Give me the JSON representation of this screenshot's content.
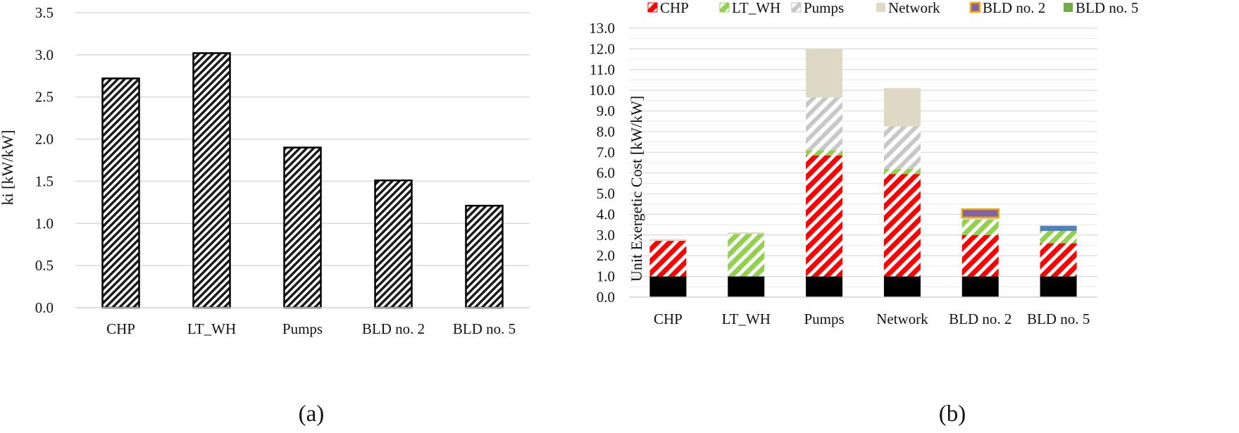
{
  "chart_data": [
    {
      "type": "bar",
      "panel_label": "(a)",
      "ylabel": "ki [kW/kW]",
      "xlabel": "",
      "categories": [
        "CHP",
        "LT_WH",
        "Pumps",
        "BLD no. 2",
        "BLD no. 5"
      ],
      "values": [
        2.72,
        3.02,
        1.9,
        1.51,
        1.21
      ],
      "ylim": [
        0,
        3.5
      ],
      "yticks": [
        "0.0",
        "0.5",
        "1.0",
        "1.5",
        "2.0",
        "2.5",
        "3.0",
        "3.5"
      ],
      "grid": true,
      "legend": "none",
      "fill": "diagonal-hatch"
    },
    {
      "type": "stacked-bar",
      "panel_label": "(b)",
      "ylabel": "Unit Exergetic Cost [kW/kW]",
      "xlabel": "",
      "categories": [
        "CHP",
        "LT_WH",
        "Pumps",
        "Network",
        "BLD no. 2",
        "BLD no. 5"
      ],
      "ylim": [
        0,
        13
      ],
      "yticks": [
        "0.0",
        "1.0",
        "2.0",
        "3.0",
        "4.0",
        "5.0",
        "6.0",
        "7.0",
        "8.0",
        "9.0",
        "10.0",
        "11.0",
        "12.0",
        "13.0"
      ],
      "grid": true,
      "legend": "top",
      "series": [
        {
          "label": "",
          "values": [
            1.0,
            1.0,
            1.0,
            1.0,
            1.0,
            1.0
          ],
          "color": "#000000",
          "pattern": "solid",
          "in_legend": false
        },
        {
          "name": "CHP",
          "values": [
            1.72,
            0,
            5.85,
            4.95,
            2.0,
            1.6
          ],
          "color": "#ff0000",
          "pattern": "hatch",
          "in_legend": true
        },
        {
          "name": "LT_WH",
          "values": [
            0,
            2.05,
            0.25,
            0.25,
            0.75,
            0.6
          ],
          "color": "#92d050",
          "pattern": "hatch",
          "in_legend": true
        },
        {
          "name": "Pumps",
          "values": [
            0,
            0,
            2.55,
            2.05,
            0,
            0
          ],
          "color": "#bfbfbf",
          "pattern": "hatch",
          "in_legend": true
        },
        {
          "name": "Network",
          "values": [
            0.08,
            0.08,
            2.35,
            1.85,
            0.1,
            0
          ],
          "color": "#ddd9c4",
          "pattern": "solid",
          "in_legend": true
        },
        {
          "name": "BLD no. 2",
          "values": [
            0,
            0,
            0,
            0,
            0.4,
            0
          ],
          "color": "#8064a2",
          "stroke": "#f5a800",
          "pattern": "solid",
          "in_legend": true
        },
        {
          "name": "BLD no. 5",
          "values": [
            0,
            0,
            0,
            0,
            0,
            0
          ],
          "color": "#70ad47",
          "pattern": "solid",
          "in_legend": true
        },
        {
          "label": "",
          "values": [
            0,
            0,
            0,
            0,
            0,
            0.25
          ],
          "color": "#4f81bd",
          "pattern": "solid",
          "in_legend": false
        }
      ]
    }
  ]
}
